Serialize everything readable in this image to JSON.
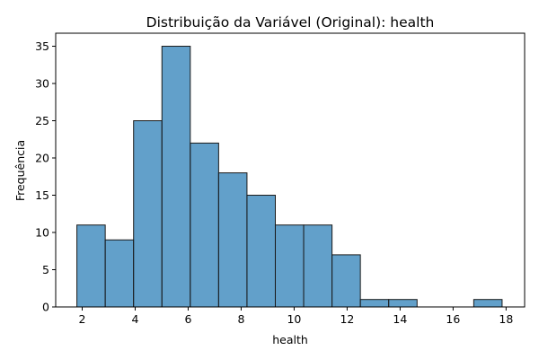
{
  "chart_data": {
    "type": "bar",
    "title": "Distribuição da Variável (Original): health",
    "xlabel": "health",
    "ylabel": "Frequência",
    "bins": [
      {
        "x0": 1.8,
        "x1": 2.87,
        "count": 11
      },
      {
        "x0": 2.87,
        "x1": 3.94,
        "count": 9
      },
      {
        "x0": 3.94,
        "x1": 5.01,
        "count": 25
      },
      {
        "x0": 5.01,
        "x1": 6.08,
        "count": 35
      },
      {
        "x0": 6.08,
        "x1": 7.15,
        "count": 22
      },
      {
        "x0": 7.15,
        "x1": 8.22,
        "count": 18
      },
      {
        "x0": 8.22,
        "x1": 9.29,
        "count": 15
      },
      {
        "x0": 9.29,
        "x1": 10.36,
        "count": 11
      },
      {
        "x0": 10.36,
        "x1": 11.43,
        "count": 11
      },
      {
        "x0": 11.43,
        "x1": 12.5,
        "count": 7
      },
      {
        "x0": 12.5,
        "x1": 13.57,
        "count": 1
      },
      {
        "x0": 13.57,
        "x1": 14.64,
        "count": 1
      },
      {
        "x0": 14.64,
        "x1": 15.71,
        "count": 0
      },
      {
        "x0": 15.71,
        "x1": 16.78,
        "count": 0
      },
      {
        "x0": 16.78,
        "x1": 17.85,
        "count": 1
      }
    ],
    "xlim": [
      1.0,
      18.7
    ],
    "ylim": [
      0,
      36.75
    ],
    "xticks": [
      2,
      4,
      6,
      8,
      10,
      12,
      14,
      16,
      18
    ],
    "yticks": [
      0,
      5,
      10,
      15,
      20,
      25,
      30,
      35
    ],
    "grid": false,
    "colors": {
      "bar": "#1f77b4",
      "edge": "#1a1a1a"
    }
  }
}
